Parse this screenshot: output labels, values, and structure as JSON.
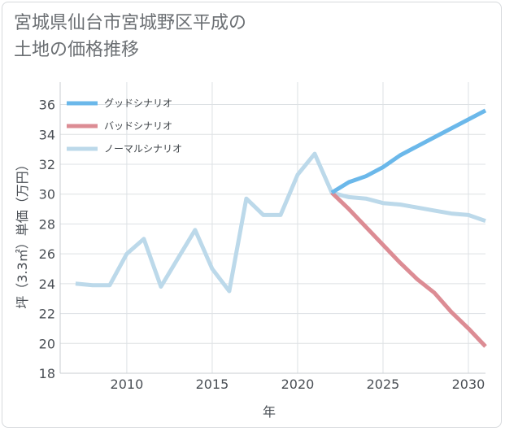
{
  "title": {
    "line1": "宮城県仙台市宮城野区平成の",
    "line2": "土地の価格推移"
  },
  "chart_data": {
    "type": "line",
    "xlabel": "年",
    "ylabel": "坪（3.3㎡）単価（万円）",
    "xlim": [
      2006.1,
      2031
    ],
    "ylim": [
      18,
      37.5
    ],
    "xticks": [
      2010,
      2015,
      2020,
      2025,
      2030
    ],
    "yticks": [
      18,
      20,
      22,
      24,
      26,
      28,
      30,
      32,
      34,
      36
    ],
    "grid": true,
    "legend_position": "top-left",
    "series": [
      {
        "name": "グッドシナリオ",
        "color": "#6bb8ea",
        "x": [
          2022,
          2023,
          2024,
          2025,
          2026,
          2027,
          2028,
          2029,
          2030,
          2031
        ],
        "y": [
          30.1,
          30.8,
          31.2,
          31.8,
          32.6,
          33.2,
          33.8,
          34.4,
          35.0,
          35.6
        ]
      },
      {
        "name": "バッドシナリオ",
        "color": "#dc8c94",
        "x": [
          2022,
          2023,
          2024,
          2025,
          2026,
          2027,
          2028,
          2029,
          2030,
          2031
        ],
        "y": [
          30.1,
          29.0,
          27.8,
          26.6,
          25.4,
          24.3,
          23.4,
          22.1,
          21.0,
          19.8
        ]
      },
      {
        "name": "ノーマルシナリオ",
        "color": "#bcd9ea",
        "x": [
          2007,
          2008,
          2009,
          2010,
          2011,
          2012,
          2013,
          2014,
          2015,
          2016,
          2017,
          2018,
          2019,
          2020,
          2021,
          2022,
          2023,
          2024,
          2025,
          2026,
          2027,
          2028,
          2029,
          2030,
          2031
        ],
        "y": [
          24.0,
          23.9,
          23.9,
          26.0,
          27.0,
          23.8,
          25.7,
          27.6,
          25.0,
          23.5,
          29.7,
          28.6,
          28.6,
          31.3,
          32.7,
          30.1,
          29.8,
          29.7,
          29.4,
          29.3,
          29.1,
          28.9,
          28.7,
          28.6,
          28.2
        ]
      }
    ]
  }
}
